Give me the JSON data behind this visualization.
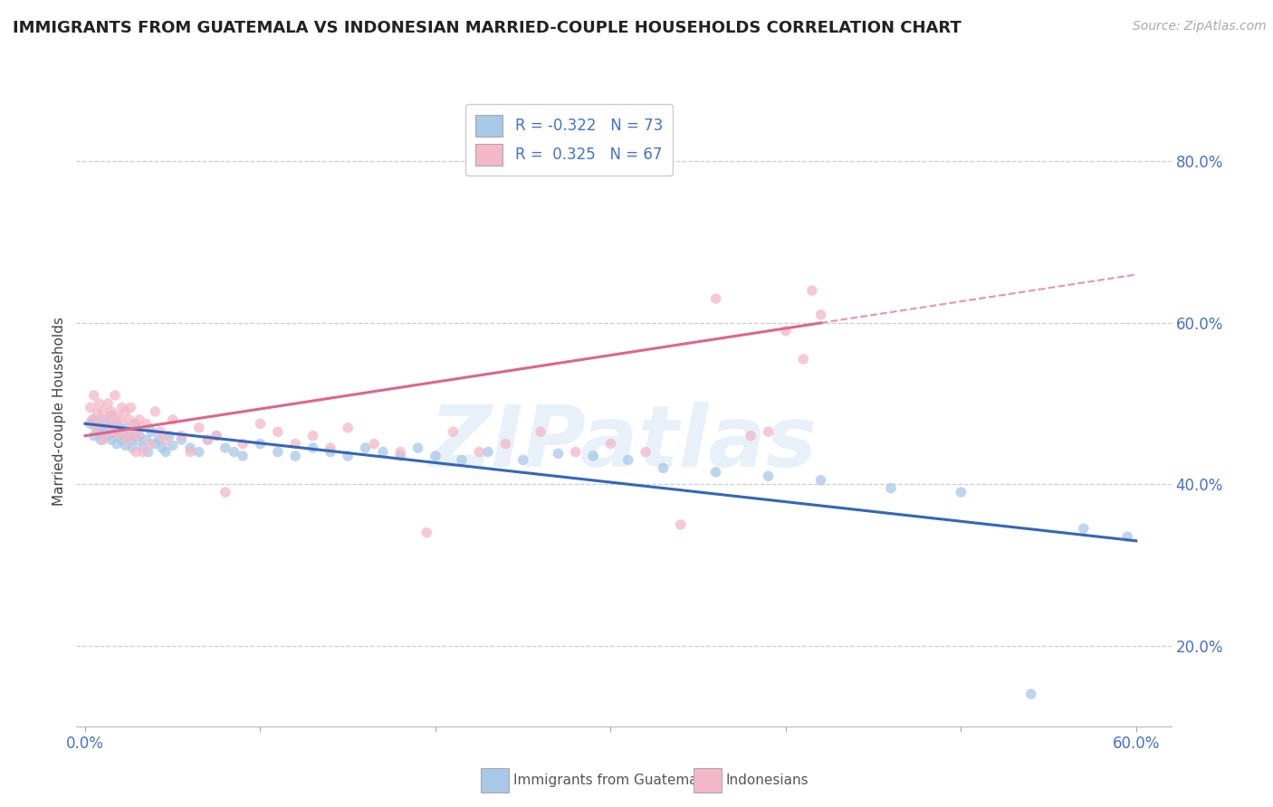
{
  "title": "IMMIGRANTS FROM GUATEMALA VS INDONESIAN MARRIED-COUPLE HOUSEHOLDS CORRELATION CHART",
  "source": "Source: ZipAtlas.com",
  "ylabel": "Married-couple Households",
  "xlabel_label_blue": "Immigrants from Guatemala",
  "xlabel_label_pink": "Indonesians",
  "xlim": [
    -0.005,
    0.62
  ],
  "ylim": [
    0.1,
    0.88
  ],
  "x_ticks": [
    0.0,
    0.1,
    0.2,
    0.3,
    0.4,
    0.5,
    0.6
  ],
  "x_tick_labels": [
    "0.0%",
    "",
    "",
    "",
    "",
    "",
    "60.0%"
  ],
  "y_ticks": [
    0.2,
    0.4,
    0.6,
    0.8
  ],
  "y_tick_labels": [
    "20.0%",
    "40.0%",
    "60.0%",
    "80.0%"
  ],
  "blue_R": -0.322,
  "blue_N": 73,
  "pink_R": 0.325,
  "pink_N": 67,
  "blue_fill_color": "#a8c8e8",
  "pink_fill_color": "#f4b8c8",
  "blue_line_color": "#3366bb",
  "pink_line_color": "#dd6688",
  "watermark": "ZIPatlas",
  "blue_scatter_x": [
    0.003,
    0.005,
    0.005,
    0.007,
    0.008,
    0.009,
    0.01,
    0.01,
    0.012,
    0.013,
    0.014,
    0.015,
    0.015,
    0.016,
    0.018,
    0.018,
    0.019,
    0.02,
    0.021,
    0.022,
    0.023,
    0.024,
    0.025,
    0.026,
    0.027,
    0.028,
    0.029,
    0.03,
    0.031,
    0.033,
    0.035,
    0.036,
    0.038,
    0.04,
    0.042,
    0.044,
    0.046,
    0.048,
    0.05,
    0.055,
    0.06,
    0.065,
    0.07,
    0.075,
    0.08,
    0.085,
    0.09,
    0.1,
    0.11,
    0.12,
    0.13,
    0.14,
    0.15,
    0.16,
    0.17,
    0.18,
    0.19,
    0.2,
    0.215,
    0.23,
    0.25,
    0.27,
    0.29,
    0.31,
    0.33,
    0.36,
    0.39,
    0.42,
    0.46,
    0.5,
    0.54,
    0.57,
    0.595
  ],
  "blue_scatter_y": [
    0.475,
    0.46,
    0.48,
    0.47,
    0.465,
    0.455,
    0.48,
    0.465,
    0.475,
    0.46,
    0.47,
    0.485,
    0.455,
    0.465,
    0.475,
    0.45,
    0.46,
    0.47,
    0.455,
    0.465,
    0.448,
    0.47,
    0.46,
    0.455,
    0.445,
    0.465,
    0.475,
    0.455,
    0.46,
    0.445,
    0.455,
    0.44,
    0.465,
    0.45,
    0.455,
    0.445,
    0.44,
    0.46,
    0.448,
    0.455,
    0.445,
    0.44,
    0.455,
    0.46,
    0.445,
    0.44,
    0.435,
    0.45,
    0.44,
    0.435,
    0.445,
    0.44,
    0.435,
    0.445,
    0.44,
    0.435,
    0.445,
    0.435,
    0.43,
    0.44,
    0.43,
    0.438,
    0.435,
    0.43,
    0.42,
    0.415,
    0.41,
    0.405,
    0.395,
    0.39,
    0.14,
    0.345,
    0.335
  ],
  "pink_scatter_x": [
    0.003,
    0.004,
    0.005,
    0.006,
    0.007,
    0.008,
    0.009,
    0.01,
    0.01,
    0.012,
    0.013,
    0.014,
    0.015,
    0.016,
    0.017,
    0.018,
    0.019,
    0.02,
    0.021,
    0.022,
    0.023,
    0.024,
    0.025,
    0.026,
    0.027,
    0.028,
    0.029,
    0.03,
    0.031,
    0.033,
    0.035,
    0.037,
    0.04,
    0.043,
    0.046,
    0.05,
    0.055,
    0.06,
    0.065,
    0.07,
    0.075,
    0.08,
    0.09,
    0.1,
    0.11,
    0.12,
    0.13,
    0.14,
    0.15,
    0.165,
    0.18,
    0.195,
    0.21,
    0.225,
    0.24,
    0.26,
    0.28,
    0.3,
    0.32,
    0.34,
    0.36,
    0.38,
    0.39,
    0.4,
    0.41,
    0.415,
    0.42
  ],
  "pink_scatter_y": [
    0.495,
    0.48,
    0.51,
    0.47,
    0.488,
    0.5,
    0.475,
    0.49,
    0.455,
    0.48,
    0.5,
    0.465,
    0.49,
    0.475,
    0.51,
    0.485,
    0.462,
    0.48,
    0.495,
    0.465,
    0.49,
    0.455,
    0.48,
    0.495,
    0.465,
    0.475,
    0.44,
    0.46,
    0.48,
    0.44,
    0.475,
    0.45,
    0.49,
    0.465,
    0.455,
    0.48,
    0.46,
    0.44,
    0.47,
    0.455,
    0.46,
    0.39,
    0.45,
    0.475,
    0.465,
    0.45,
    0.46,
    0.445,
    0.47,
    0.45,
    0.44,
    0.34,
    0.465,
    0.44,
    0.45,
    0.465,
    0.44,
    0.45,
    0.44,
    0.35,
    0.63,
    0.46,
    0.465,
    0.59,
    0.555,
    0.64,
    0.61
  ]
}
